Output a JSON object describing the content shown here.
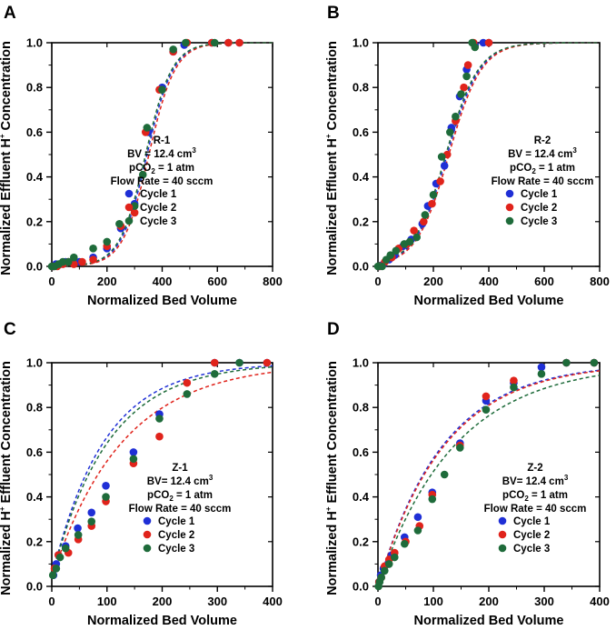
{
  "colors": {
    "cycle1": "#1f2fd6",
    "cycle2": "#e0231b",
    "cycle3": "#1e6b3a"
  },
  "chart_data": [
    {
      "type": "scatter",
      "panel": "A",
      "xlabel": "Normalized Bed Volume",
      "ylabel": [
        "Normalized Effluent H",
        "+",
        " Concentration"
      ],
      "xlim": [
        0,
        800
      ],
      "ylim": [
        0,
        1.0
      ],
      "xticks": [
        "0",
        "200",
        "400",
        "600",
        "800"
      ],
      "yticks": [
        "0.0",
        "0.2",
        "0.4",
        "0.6",
        "0.8",
        "1.0"
      ],
      "annotation": {
        "sample": "R-1",
        "bv": "BV = 12.4 cm",
        "bv_sup": "3",
        "pco2_pre": "pCO",
        "pco2_sub": "2",
        "pco2_post": " = 1 atm",
        "flow": "Flow Rate = 40 sccm"
      },
      "fits": [
        {
          "series": "Cycle 1",
          "mid": 345,
          "k": 0.021
        },
        {
          "series": "Cycle 2",
          "mid": 352,
          "k": 0.021
        },
        {
          "series": "Cycle 3",
          "mid": 340,
          "k": 0.021
        }
      ],
      "series": [
        {
          "name": "Cycle 1",
          "points": [
            [
              5,
              0
            ],
            [
              15,
              0.01
            ],
            [
              30,
              0.01
            ],
            [
              50,
              0.02
            ],
            [
              75,
              0.02
            ],
            [
              100,
              0.02
            ],
            [
              150,
              0.04
            ],
            [
              200,
              0.08
            ],
            [
              250,
              0.17
            ],
            [
              300,
              0.28
            ],
            [
              350,
              0.6
            ],
            [
              400,
              0.8
            ],
            [
              440,
              0.96
            ],
            [
              480,
              0.99
            ],
            [
              580,
              1.0
            ],
            [
              640,
              1.0
            ],
            [
              680,
              1.0
            ]
          ]
        },
        {
          "name": "Cycle 2",
          "points": [
            [
              5,
              0
            ],
            [
              20,
              0
            ],
            [
              40,
              0.01
            ],
            [
              60,
              0.02
            ],
            [
              80,
              0.01
            ],
            [
              110,
              0.02
            ],
            [
              150,
              0.03
            ],
            [
              200,
              0.09
            ],
            [
              250,
              0.18
            ],
            [
              300,
              0.24
            ],
            [
              340,
              0.6
            ],
            [
              390,
              0.79
            ],
            [
              440,
              0.96
            ],
            [
              490,
              1.0
            ],
            [
              580,
              1.0
            ],
            [
              640,
              1.0
            ],
            [
              680,
              1.0
            ]
          ]
        },
        {
          "name": "Cycle 3",
          "points": [
            [
              0,
              0
            ],
            [
              10,
              0
            ],
            [
              25,
              0.01
            ],
            [
              40,
              0.02
            ],
            [
              60,
              0.02
            ],
            [
              80,
              0.04
            ],
            [
              150,
              0.08
            ],
            [
              200,
              0.11
            ],
            [
              245,
              0.19
            ],
            [
              300,
              0.27
            ],
            [
              330,
              0.41
            ],
            [
              345,
              0.62
            ],
            [
              400,
              0.79
            ],
            [
              440,
              0.97
            ],
            [
              485,
              1.0
            ],
            [
              590,
              1.0
            ]
          ]
        }
      ],
      "legend": [
        "Cycle 1",
        "Cycle 2",
        "Cycle 3"
      ]
    },
    {
      "type": "scatter",
      "panel": "B",
      "xlabel": "Normalized Bed Volume",
      "ylabel": [
        "Normalized Effluent H",
        "+",
        " Concentration"
      ],
      "xlim": [
        0,
        800
      ],
      "ylim": [
        0,
        1.0
      ],
      "xticks": [
        "0",
        "200",
        "400",
        "600",
        "800"
      ],
      "yticks": [
        "0.0",
        "0.2",
        "0.4",
        "0.6",
        "0.8",
        "1.0"
      ],
      "annotation": {
        "sample": "R-2",
        "bv": "BV = 12.4 cm",
        "bv_sup": "3",
        "pco2_pre": "pCO",
        "pco2_sub": "2",
        "pco2_post": " = 1 atm",
        "flow": "Flow Rate = 40 sccm"
      },
      "fits": [
        {
          "series": "Cycle 1",
          "mid": 250,
          "k": 0.017
        },
        {
          "series": "Cycle 2",
          "mid": 256,
          "k": 0.017
        },
        {
          "series": "Cycle 3",
          "mid": 245,
          "k": 0.017
        }
      ],
      "series": [
        {
          "name": "Cycle 1",
          "points": [
            [
              5,
              0
            ],
            [
              20,
              0.01
            ],
            [
              40,
              0.03
            ],
            [
              60,
              0.05
            ],
            [
              90,
              0.09
            ],
            [
              120,
              0.12
            ],
            [
              160,
              0.19
            ],
            [
              180,
              0.27
            ],
            [
              210,
              0.37
            ],
            [
              240,
              0.45
            ],
            [
              265,
              0.62
            ],
            [
              295,
              0.76
            ],
            [
              320,
              0.88
            ],
            [
              350,
              0.99
            ],
            [
              380,
              1.0
            ],
            [
              400,
              1.0
            ]
          ]
        },
        {
          "name": "Cycle 2",
          "points": [
            [
              5,
              0
            ],
            [
              25,
              0.02
            ],
            [
              50,
              0.04
            ],
            [
              75,
              0.08
            ],
            [
              105,
              0.1
            ],
            [
              130,
              0.16
            ],
            [
              165,
              0.2
            ],
            [
              195,
              0.28
            ],
            [
              225,
              0.38
            ],
            [
              250,
              0.5
            ],
            [
              280,
              0.65
            ],
            [
              310,
              0.8
            ],
            [
              325,
              0.9
            ],
            [
              345,
              1.0
            ],
            [
              400,
              1.0
            ]
          ]
        },
        {
          "name": "Cycle 3",
          "points": [
            [
              0,
              0
            ],
            [
              15,
              0
            ],
            [
              30,
              0.03
            ],
            [
              45,
              0.05
            ],
            [
              65,
              0.07
            ],
            [
              95,
              0.1
            ],
            [
              115,
              0.11
            ],
            [
              140,
              0.13
            ],
            [
              170,
              0.23
            ],
            [
              200,
              0.32
            ],
            [
              230,
              0.49
            ],
            [
              260,
              0.6
            ],
            [
              280,
              0.67
            ],
            [
              300,
              0.77
            ],
            [
              320,
              0.85
            ],
            [
              340,
              1.0
            ],
            [
              350,
              0.98
            ]
          ]
        }
      ],
      "legend": [
        "Cycle 1",
        "Cycle 2",
        "Cycle 3"
      ]
    },
    {
      "type": "scatter",
      "panel": "C",
      "xlabel": "Normalized Bed Volume",
      "ylabel": [
        "Normalized H",
        "+",
        " Effluent Concentration"
      ],
      "xlim": [
        0,
        400
      ],
      "ylim": [
        0,
        1.0
      ],
      "xticks": [
        "0",
        "100",
        "200",
        "300",
        "400"
      ],
      "yticks": [
        "0.0",
        "0.2",
        "0.4",
        "0.6",
        "0.8",
        "1.0"
      ],
      "annotation": {
        "sample": "Z-1",
        "bv": "BV= 12.4 cm",
        "bv_sup": "3",
        "pco2_pre": "pCO",
        "pco2_sub": "2",
        "pco2_post": " = 1 atm",
        "flow": "Flow Rate = 40 sccm"
      },
      "fits": [
        {
          "series": "Cycle 1",
          "y0": 0.04,
          "k": 0.0106
        },
        {
          "series": "Cycle 2",
          "y0": 0.04,
          "k": 0.0078
        },
        {
          "series": "Cycle 3",
          "y0": 0.04,
          "k": 0.0098
        }
      ],
      "series": [
        {
          "name": "Cycle 1",
          "points": [
            [
              3,
              0.05
            ],
            [
              8,
              0.1
            ],
            [
              12,
              0.14
            ],
            [
              25,
              0.18
            ],
            [
              47,
              0.26
            ],
            [
              72,
              0.33
            ],
            [
              98,
              0.45
            ],
            [
              148,
              0.6
            ],
            [
              195,
              0.77
            ],
            [
              295,
              1.0
            ],
            [
              340,
              1.0
            ],
            [
              390,
              1.0
            ]
          ]
        },
        {
          "name": "Cycle 2",
          "points": [
            [
              5,
              0.08
            ],
            [
              12,
              0.14
            ],
            [
              30,
              0.15
            ],
            [
              48,
              0.21
            ],
            [
              72,
              0.27
            ],
            [
              98,
              0.38
            ],
            [
              148,
              0.55
            ],
            [
              195,
              0.67
            ],
            [
              245,
              0.91
            ],
            [
              295,
              1.0
            ],
            [
              390,
              1.0
            ]
          ]
        },
        {
          "name": "Cycle 3",
          "points": [
            [
              2,
              0.05
            ],
            [
              8,
              0.08
            ],
            [
              15,
              0.13
            ],
            [
              25,
              0.17
            ],
            [
              48,
              0.23
            ],
            [
              72,
              0.29
            ],
            [
              98,
              0.4
            ],
            [
              148,
              0.57
            ],
            [
              195,
              0.75
            ],
            [
              245,
              0.86
            ],
            [
              295,
              0.95
            ],
            [
              340,
              1.0
            ]
          ]
        }
      ],
      "legend": [
        "Cycle 1",
        "Cycle 2",
        "Cycle 3"
      ]
    },
    {
      "type": "scatter",
      "panel": "D",
      "xlabel": "Normalized Bed Volume",
      "ylabel": [
        "Normalized H",
        "+",
        " Effluent Concentration"
      ],
      "xlim": [
        0,
        400
      ],
      "ylim": [
        0,
        1.0
      ],
      "xticks": [
        "0",
        "100",
        "200",
        "300",
        "400"
      ],
      "yticks": [
        "0.0",
        "0.2",
        "0.4",
        "0.6",
        "0.8",
        "1.0"
      ],
      "annotation": {
        "sample": "Z-2",
        "bv": "BV= 12.4 cm",
        "bv_sup": "3",
        "pco2_pre": "pCO",
        "pco2_sub": "2",
        "pco2_post": " = 1 atm",
        "flow": "Flow Rate = 40 sccm"
      },
      "fits": [
        {
          "series": "Cycle 1",
          "y0": 0.0,
          "k": 0.0085
        },
        {
          "series": "Cycle 2",
          "y0": 0.0,
          "k": 0.0083
        },
        {
          "series": "Cycle 3",
          "y0": 0.0,
          "k": 0.0072
        }
      ],
      "series": [
        {
          "name": "Cycle 1",
          "points": [
            [
              2,
              0.02
            ],
            [
              5,
              0.05
            ],
            [
              10,
              0.08
            ],
            [
              18,
              0.1
            ],
            [
              25,
              0.14
            ],
            [
              48,
              0.22
            ],
            [
              72,
              0.31
            ],
            [
              98,
              0.42
            ],
            [
              148,
              0.64
            ],
            [
              195,
              0.83
            ],
            [
              245,
              0.91
            ],
            [
              295,
              0.98
            ],
            [
              340,
              1.0
            ],
            [
              390,
              1.0
            ]
          ]
        },
        {
          "name": "Cycle 2",
          "points": [
            [
              2,
              0.02
            ],
            [
              6,
              0.04
            ],
            [
              12,
              0.09
            ],
            [
              20,
              0.12
            ],
            [
              30,
              0.15
            ],
            [
              50,
              0.2
            ],
            [
              75,
              0.27
            ],
            [
              98,
              0.41
            ],
            [
              148,
              0.63
            ],
            [
              195,
              0.85
            ],
            [
              245,
              0.92
            ],
            [
              340,
              1.0
            ],
            [
              390,
              1.0
            ]
          ]
        },
        {
          "name": "Cycle 3",
          "points": [
            [
              1,
              0
            ],
            [
              3,
              0.02
            ],
            [
              6,
              0.04
            ],
            [
              12,
              0.07
            ],
            [
              20,
              0.1
            ],
            [
              30,
              0.13
            ],
            [
              48,
              0.19
            ],
            [
              72,
              0.25
            ],
            [
              98,
              0.39
            ],
            [
              120,
              0.5
            ],
            [
              148,
              0.62
            ],
            [
              195,
              0.79
            ],
            [
              245,
              0.89
            ],
            [
              295,
              0.95
            ],
            [
              340,
              1.0
            ],
            [
              390,
              1.0
            ]
          ]
        }
      ],
      "legend": [
        "Cycle 1",
        "Cycle 2",
        "Cycle 3"
      ]
    }
  ]
}
